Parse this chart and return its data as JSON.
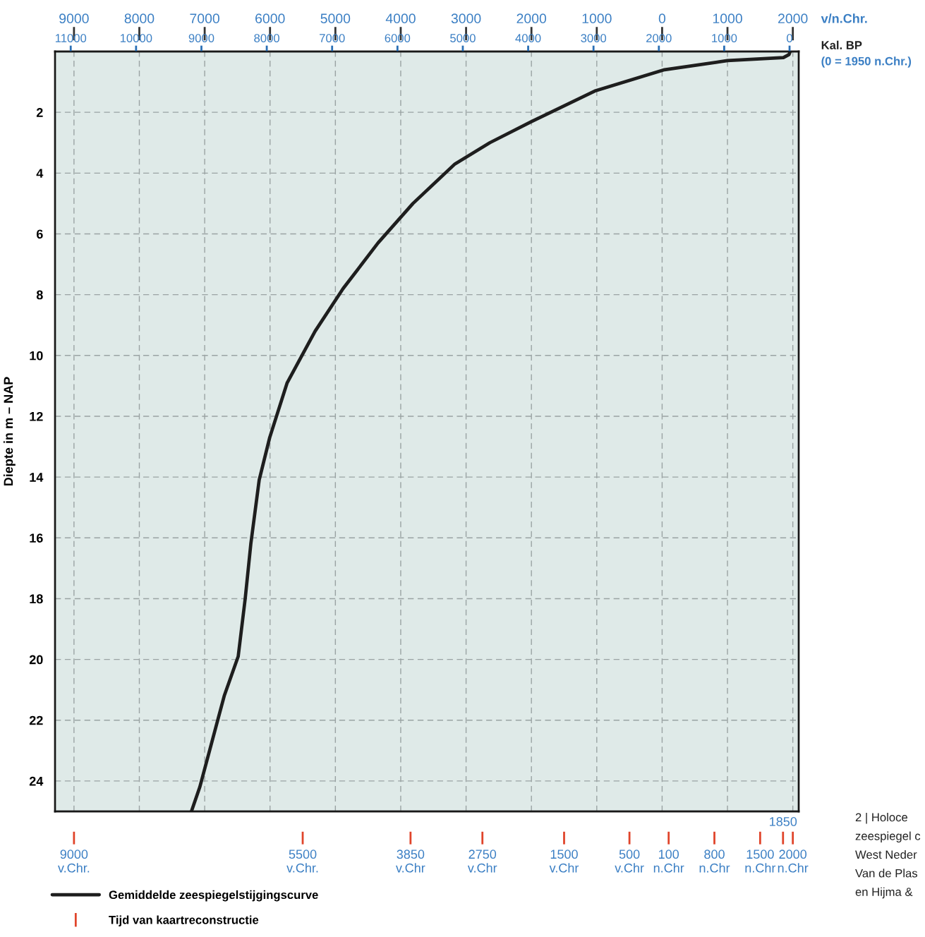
{
  "chart_data": {
    "type": "line",
    "ylabel": "Diepte in m – NAP",
    "xlabel": "v/n.Chr.",
    "x2label": "Kal. BP\n(0 = 1950 n.Chr.)",
    "ylim": [
      25,
      0
    ],
    "yticks": [
      2,
      4,
      6,
      8,
      10,
      12,
      14,
      16,
      18,
      20,
      22,
      24
    ],
    "xlim": [
      -9290,
      2090
    ],
    "xticks": [
      {
        "value": -9000,
        "label": "9000"
      },
      {
        "value": -8000,
        "label": "8000"
      },
      {
        "value": -7000,
        "label": "7000"
      },
      {
        "value": -6000,
        "label": "6000"
      },
      {
        "value": -5000,
        "label": "5000"
      },
      {
        "value": -4000,
        "label": "4000"
      },
      {
        "value": -3000,
        "label": "3000"
      },
      {
        "value": -2000,
        "label": "2000"
      },
      {
        "value": -1000,
        "label": "1000"
      },
      0,
      1000,
      2000
    ],
    "x2lim": [
      11240,
      -140
    ],
    "x2ticks": [
      11000,
      10000,
      9000,
      8000,
      7000,
      6000,
      5000,
      4000,
      3000,
      2000,
      1000,
      0
    ],
    "grid": true,
    "legend": "bottom left",
    "marker": "none",
    "line_style": "solid",
    "series": [
      {
        "name": "Gemiddelde zeespiegelstijgingscurve",
        "color": "#1e1e1e",
        "x": [
          -7203,
          -7075,
          -6701,
          -6487,
          -6380,
          -6294,
          -6166,
          -6005,
          -5738,
          -5310,
          -4882,
          -4348,
          -3813,
          -3171,
          -2636,
          -1995,
          -1032,
          37,
          1000,
          1856,
          1941,
          1960
        ],
        "values": [
          25,
          24.2,
          21.2,
          19.9,
          18.0,
          16.2,
          14.1,
          12.7,
          10.9,
          9.2,
          7.8,
          6.3,
          5.0,
          3.7,
          3.0,
          2.3,
          1.3,
          0.6,
          0.3,
          0.2,
          0.1,
          0
        ]
      }
    ],
    "ref_lines": [
      {
        "axis": "x",
        "value": -9000,
        "label": "9000\nv.Chr.",
        "color": "#e0442a"
      },
      {
        "axis": "x",
        "value": -5500,
        "label": "5500\nv.Chr.",
        "color": "#e0442a"
      },
      {
        "axis": "x",
        "value": -3850,
        "label": "3850\nv.Chr",
        "color": "#e0442a"
      },
      {
        "axis": "x",
        "value": -2750,
        "label": "2750\nv.Chr",
        "color": "#e0442a"
      },
      {
        "axis": "x",
        "value": -1500,
        "label": "1500\nv.Chr",
        "color": "#e0442a"
      },
      {
        "axis": "x",
        "value": -500,
        "label": "500\nv.Chr",
        "color": "#e0442a"
      },
      {
        "axis": "x",
        "value": 100,
        "label": "100\nn.Chr",
        "color": "#e0442a"
      },
      {
        "axis": "x",
        "value": 800,
        "label": "800\nn.Chr",
        "color": "#e0442a"
      },
      {
        "axis": "x",
        "value": 1500,
        "label": "1500\nn.Chr",
        "color": "#e0442a"
      },
      {
        "axis": "x",
        "value": 1850,
        "label": "1850",
        "color": "#e0442a"
      },
      {
        "axis": "x",
        "value": 2000,
        "label": "2000\nn.Chr",
        "color": "#e0442a"
      }
    ],
    "annotations": [
      "Tijd van kaartreconstructie",
      "2 | Holoce\nzeespiegel c\nWest Neder\nVan de Plas\nen Hijma &"
    ]
  }
}
